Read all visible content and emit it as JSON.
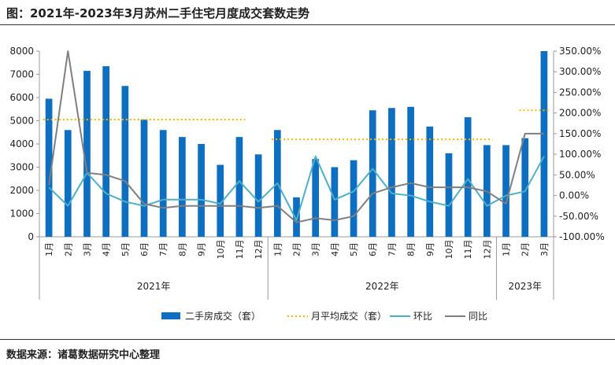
{
  "title": "图：2021年-2023年3月苏州二手住宅月度成交套数走势",
  "source": "数据来源：诸葛数据研究中心整理",
  "colors": {
    "bar": "#0E6EC0",
    "avg": "#F5B800",
    "mom": "#4DAFC8",
    "yoy": "#7F7F7F",
    "axis": "#999999"
  },
  "chart_data": {
    "type": "bar",
    "categories": [
      "1月",
      "2月",
      "3月",
      "4月",
      "5月",
      "6月",
      "7月",
      "8月",
      "9月",
      "10月",
      "11月",
      "12月",
      "1月",
      "2月",
      "3月",
      "4月",
      "5月",
      "6月",
      "7月",
      "8月",
      "9月",
      "10月",
      "11月",
      "12月",
      "1月",
      "2月",
      "3月"
    ],
    "groups": [
      {
        "label": "2021年",
        "count": 12
      },
      {
        "label": "2022年",
        "count": 12
      },
      {
        "label": "2023年",
        "count": 3
      }
    ],
    "left_axis": {
      "min": 0,
      "max": 8000,
      "step": 1000,
      "ticks": [
        "0",
        "1000",
        "2000",
        "3000",
        "4000",
        "5000",
        "6000",
        "7000",
        "8000"
      ]
    },
    "right_axis": {
      "min": -100,
      "max": 350,
      "step": 50,
      "ticks": [
        "-100.00%",
        "-50.00%",
        "0.00%",
        "50.00%",
        "100.00%",
        "150.00%",
        "200.00%",
        "250.00%",
        "300.00%",
        "350.00%"
      ]
    },
    "series": [
      {
        "name": "二手房成交（套）",
        "kind": "bar",
        "axis": "left",
        "values": [
          5950,
          4600,
          7150,
          7350,
          6500,
          5050,
          4600,
          4300,
          4000,
          3100,
          4300,
          3550,
          4600,
          1700,
          3350,
          3000,
          3300,
          5450,
          5550,
          5600,
          4750,
          3600,
          5150,
          3950,
          3950,
          4250,
          8000
        ]
      },
      {
        "name": "月平均成交（套）",
        "kind": "avg",
        "axis": "left",
        "segments": [
          {
            "from": 0,
            "to": 10,
            "value": 5050
          },
          {
            "from": 12,
            "to": 23,
            "value": 4200
          },
          {
            "from": 25,
            "to": 26,
            "value": 5450
          }
        ]
      },
      {
        "name": "环比",
        "kind": "line",
        "axis": "right",
        "values": [
          20,
          -25,
          55,
          5,
          -15,
          -25,
          -10,
          -10,
          -10,
          -20,
          35,
          -15,
          30,
          -60,
          95,
          -10,
          10,
          65,
          5,
          0,
          -15,
          -25,
          40,
          -25,
          0,
          10,
          95
        ]
      },
      {
        "name": "同比",
        "kind": "line",
        "axis": "right",
        "values": [
          25,
          350,
          55,
          50,
          35,
          -20,
          -30,
          -25,
          -25,
          -25,
          -25,
          -30,
          -25,
          -65,
          -55,
          -60,
          -50,
          5,
          20,
          30,
          20,
          20,
          20,
          10,
          -20,
          150,
          150
        ]
      }
    ],
    "legend": "bottom"
  }
}
